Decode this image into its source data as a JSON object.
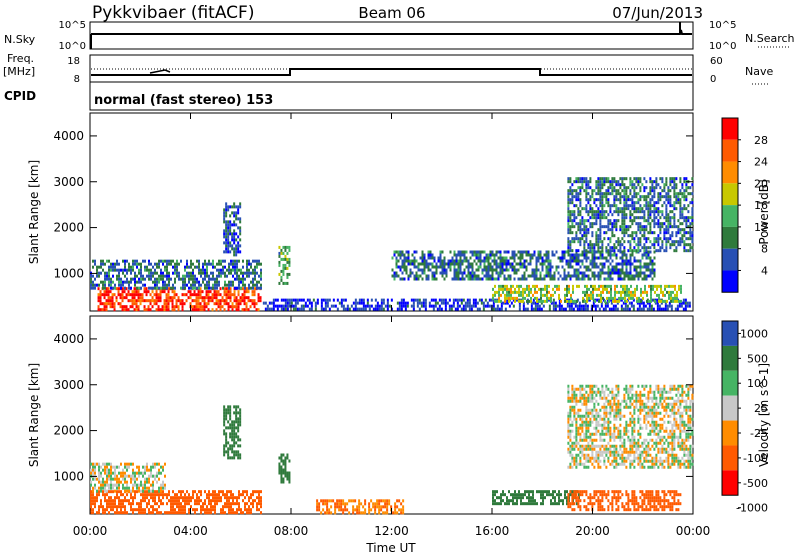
{
  "header": {
    "station": "Pykkvibaer (fitACF)",
    "beam": "Beam 06",
    "date": "07/Jun/2013"
  },
  "status_rows": {
    "nsky_label": "N.Sky",
    "nsky_ticks": [
      "10^5",
      "10^0"
    ],
    "nsearch_label": "N.Search",
    "nsearch_ticks": [
      "10^5",
      "10^0"
    ],
    "freq_label": "Freq.",
    "freq_unit": "[MHz]",
    "freq_ticks": [
      "18",
      "8"
    ],
    "nave_label": "Nave",
    "nave_ticks": [
      "60",
      "0"
    ],
    "cpid_label": "CPID",
    "cpid_text": "normal (fast stereo) 153"
  },
  "x_axis": {
    "label": "Time UT",
    "ticks": [
      "00:00",
      "04:00",
      "08:00",
      "12:00",
      "16:00",
      "20:00",
      "00:00"
    ]
  },
  "colors": {
    "power": [
      "#0000ff",
      "#2850b4",
      "#2f7a3c",
      "#46b464",
      "#c8c800",
      "#ff8c00",
      "#ff5a00",
      "#ff0000"
    ],
    "velocity": [
      "#2850b4",
      "#2f7a3c",
      "#46b464",
      "#c8c8c8",
      "#ff8c00",
      "#ff5a00",
      "#ff0000"
    ]
  },
  "chart_data": [
    {
      "type": "heatmap",
      "ylabel": "Slant Range [km]",
      "xlabel": "",
      "ylim": [
        180,
        4500
      ],
      "yticks": [
        "1000",
        "2000",
        "3000",
        "4000"
      ],
      "colorbar_label": "Power [dB]",
      "colorbar_ticks": [
        "4",
        "8",
        "12",
        "16",
        "20",
        "24",
        "28"
      ],
      "regions": [
        {
          "t0": 0.3,
          "t1": 6.8,
          "r0": 200,
          "r1": 700,
          "v": 28
        },
        {
          "t0": 0.0,
          "t1": 6.8,
          "r0": 700,
          "r1": 1300,
          "v": 8
        },
        {
          "t0": 5.3,
          "t1": 6.0,
          "r0": 1400,
          "r1": 2550,
          "v": 6
        },
        {
          "t0": 7.5,
          "t1": 7.9,
          "r0": 800,
          "r1": 1600,
          "v": 12
        },
        {
          "t0": 6.8,
          "t1": 23.9,
          "r0": 200,
          "r1": 450,
          "v": 4
        },
        {
          "t0": 12.0,
          "t1": 22.5,
          "r0": 900,
          "r1": 1500,
          "v": 8
        },
        {
          "t0": 19.0,
          "t1": 24.0,
          "r0": 1500,
          "r1": 3100,
          "v": 8
        },
        {
          "t0": 16.0,
          "t1": 23.5,
          "r0": 400,
          "r1": 750,
          "v": 16
        }
      ]
    },
    {
      "type": "heatmap",
      "ylabel": "Slant Range [km]",
      "xlabel": "Time UT",
      "ylim": [
        180,
        4500
      ],
      "yticks": [
        "1000",
        "2000",
        "3000",
        "4000"
      ],
      "colorbar_label": "Velocity [m s^-1]",
      "colorbar_ticks": [
        "1000",
        "500",
        "100",
        "25",
        "-25",
        "-100",
        "-500",
        "-1000"
      ],
      "regions": [
        {
          "t0": 0.0,
          "t1": 6.8,
          "r0": 200,
          "r1": 700,
          "v": -300
        },
        {
          "t0": 0.0,
          "t1": 3.0,
          "r0": 700,
          "r1": 1300,
          "v": 0
        },
        {
          "t0": 5.3,
          "t1": 6.0,
          "r0": 1400,
          "r1": 2550,
          "v": 200
        },
        {
          "t0": 7.5,
          "t1": 7.9,
          "r0": 900,
          "r1": 1500,
          "v": 200
        },
        {
          "t0": 9.0,
          "t1": 12.5,
          "r0": 200,
          "r1": 500,
          "v": -100
        },
        {
          "t0": 16.0,
          "t1": 19.5,
          "r0": 400,
          "r1": 700,
          "v": 200
        },
        {
          "t0": 19.0,
          "t1": 24.0,
          "r0": 1200,
          "r1": 3000,
          "v": 0
        },
        {
          "t0": 19.0,
          "t1": 23.5,
          "r0": 300,
          "r1": 700,
          "v": -300
        }
      ]
    }
  ]
}
